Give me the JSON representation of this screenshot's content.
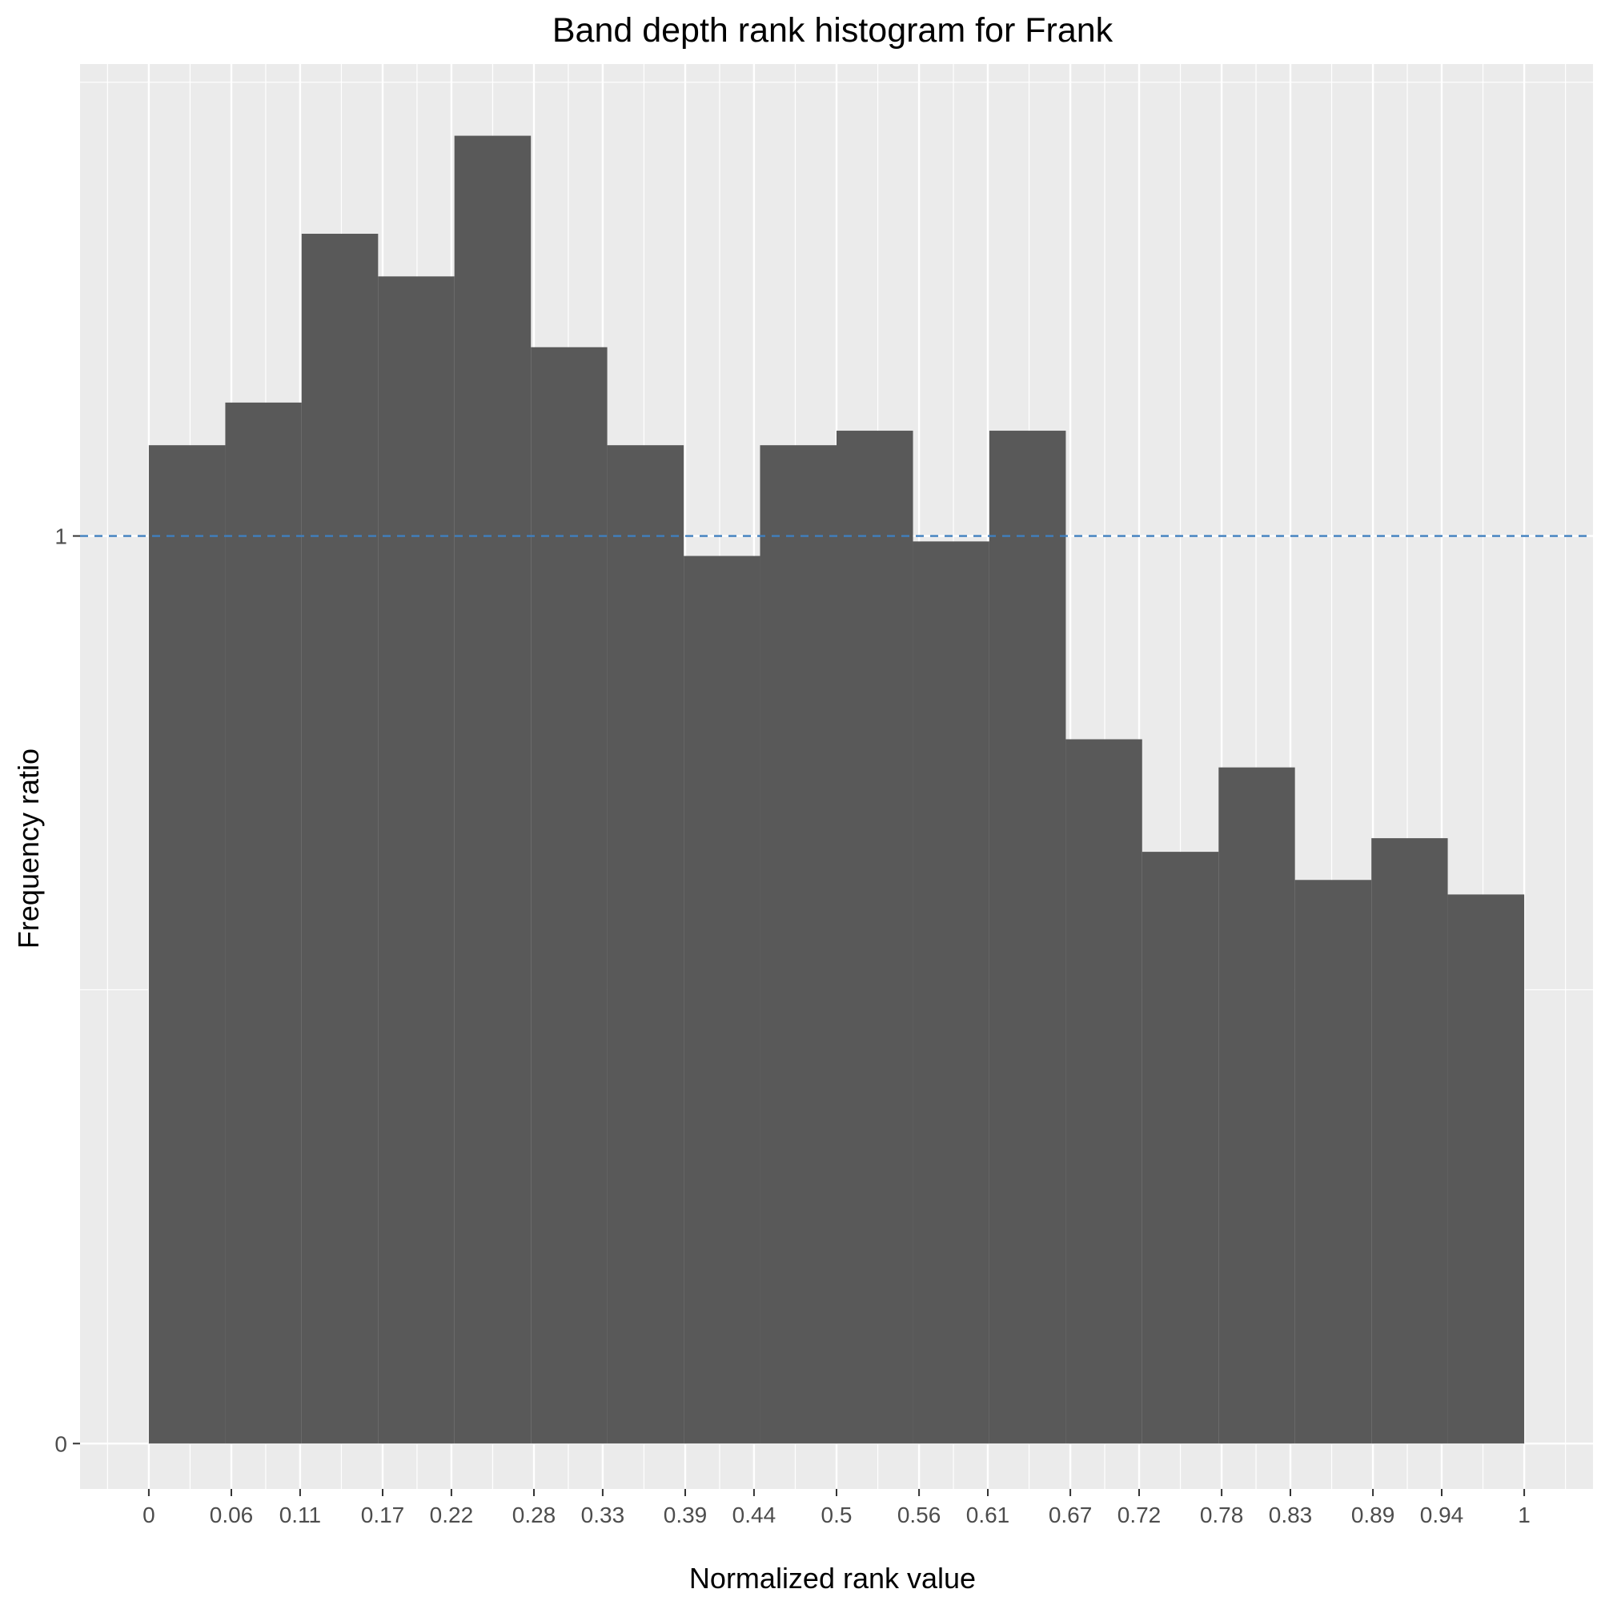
{
  "chart_data": {
    "type": "bar",
    "title": "Band depth rank histogram for Frank",
    "xlabel": "Normalized rank value",
    "ylabel": "Frequency ratio",
    "x_ticks": [
      "0",
      "0.06",
      "0.11",
      "0.17",
      "0.22",
      "0.28",
      "0.33",
      "0.39",
      "0.44",
      "0.5",
      "0.56",
      "0.61",
      "0.67",
      "0.72",
      "0.78",
      "0.83",
      "0.89",
      "0.94",
      "1"
    ],
    "y_ticks": [
      "0",
      "1"
    ],
    "bin_edges": [
      0,
      0.0556,
      0.1111,
      0.1667,
      0.2222,
      0.2778,
      0.3333,
      0.3889,
      0.4444,
      0.5,
      0.5556,
      0.6111,
      0.6667,
      0.7222,
      0.7778,
      0.8333,
      0.8889,
      0.9444,
      1
    ],
    "values": [
      1.1,
      1.147,
      1.333,
      1.286,
      1.441,
      1.208,
      1.1,
      0.978,
      1.1,
      1.116,
      0.994,
      1.116,
      0.776,
      0.652,
      0.745,
      0.621,
      0.667,
      0.605
    ],
    "reference_line": {
      "y": 1,
      "style": "dashed",
      "color": "#3f7fbf"
    },
    "xlim": [
      -0.05,
      1.05
    ],
    "ylim": [
      -0.05,
      1.52
    ],
    "grid": true,
    "colors": {
      "bar": "#595959",
      "panel": "#ebebeb",
      "grid": "#ffffff"
    }
  }
}
